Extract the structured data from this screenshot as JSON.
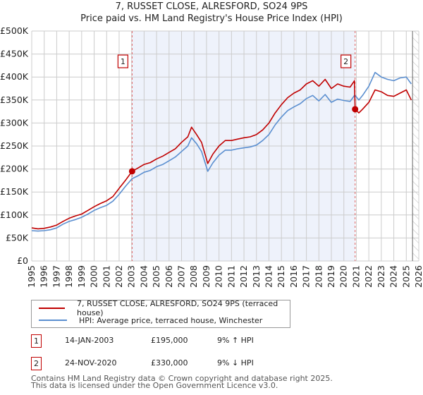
{
  "header": {
    "title": "7, RUSSET CLOSE, ALRESFORD, SO24 9PS",
    "subtitle": "Price paid vs. HM Land Registry's House Price Index (HPI)"
  },
  "colors": {
    "price_paid": "#c00000",
    "hpi": "#5b8fd0",
    "shaded_ownership": "#eef2fb",
    "grid": "#cccccc",
    "marker_border": "#c00000"
  },
  "chart_data": {
    "type": "line",
    "title": "Price paid vs. HM Land Registry's House Price Index (HPI)",
    "xlabel": "",
    "ylabel": "",
    "xlim": [
      1995,
      2026
    ],
    "ylim": [
      0,
      500000
    ],
    "grid": true,
    "x_ticks": [
      "1995",
      "1996",
      "1997",
      "1998",
      "1999",
      "2000",
      "2001",
      "2002",
      "2003",
      "2004",
      "2005",
      "2006",
      "2007",
      "2008",
      "2009",
      "2010",
      "2011",
      "2012",
      "2013",
      "2014",
      "2015",
      "2016",
      "2017",
      "2018",
      "2019",
      "2020",
      "2021",
      "2022",
      "2023",
      "2024",
      "2025",
      "2026"
    ],
    "y_ticks": [
      "£0",
      "£50K",
      "£100K",
      "£150K",
      "£200K",
      "£250K",
      "£300K",
      "£350K",
      "£400K",
      "£450K",
      "£500K"
    ],
    "y_tick_values": [
      0,
      50000,
      100000,
      150000,
      200000,
      250000,
      300000,
      350000,
      400000,
      450000,
      500000
    ],
    "legend_position": "below",
    "series": [
      {
        "name": "7, RUSSET CLOSE, ALRESFORD, SO24 9PS (terraced house)",
        "color": "#c00000",
        "x": [
          1995.0,
          1995.5,
          1996.0,
          1996.5,
          1997.0,
          1997.5,
          1998.0,
          1998.5,
          1999.0,
          1999.5,
          2000.0,
          2000.5,
          2001.0,
          2001.5,
          2002.0,
          2002.5,
          2003.04,
          2003.5,
          2004.0,
          2004.5,
          2005.0,
          2005.5,
          2006.0,
          2006.5,
          2007.0,
          2007.5,
          2007.8,
          2008.2,
          2008.6,
          2009.1,
          2009.5,
          2010.0,
          2010.5,
          2011.0,
          2011.5,
          2012.0,
          2012.5,
          2013.0,
          2013.5,
          2014.0,
          2014.5,
          2015.0,
          2015.5,
          2016.0,
          2016.5,
          2017.0,
          2017.5,
          2018.0,
          2018.5,
          2019.0,
          2019.5,
          2020.0,
          2020.5,
          2020.85,
          2020.9,
          2021.2,
          2021.5,
          2022.0,
          2022.5,
          2023.0,
          2023.5,
          2024.0,
          2024.5,
          2025.0,
          2025.4
        ],
        "values": [
          72000,
          70000,
          71000,
          74000,
          78000,
          86000,
          93000,
          98000,
          102000,
          110000,
          118000,
          125000,
          131000,
          140000,
          158000,
          175000,
          195000,
          202000,
          210000,
          214000,
          222000,
          228000,
          236000,
          244000,
          258000,
          270000,
          291000,
          275000,
          258000,
          212000,
          232000,
          250000,
          262000,
          262000,
          265000,
          268000,
          270000,
          275000,
          285000,
          300000,
          322000,
          340000,
          355000,
          365000,
          372000,
          385000,
          392000,
          380000,
          395000,
          375000,
          385000,
          380000,
          378000,
          392000,
          330000,
          322000,
          330000,
          345000,
          372000,
          368000,
          360000,
          358000,
          365000,
          372000,
          350000
        ]
      },
      {
        "name": "HPI: Average price, terraced house, Winchester",
        "color": "#5b8fd0",
        "x": [
          1995.0,
          1995.5,
          1996.0,
          1996.5,
          1997.0,
          1997.5,
          1998.0,
          1998.5,
          1999.0,
          1999.5,
          2000.0,
          2000.5,
          2001.0,
          2001.5,
          2002.0,
          2002.5,
          2003.04,
          2003.5,
          2004.0,
          2004.5,
          2005.0,
          2005.5,
          2006.0,
          2006.5,
          2007.0,
          2007.5,
          2007.8,
          2008.2,
          2008.6,
          2009.1,
          2009.5,
          2010.0,
          2010.5,
          2011.0,
          2011.5,
          2012.0,
          2012.5,
          2013.0,
          2013.5,
          2014.0,
          2014.5,
          2015.0,
          2015.5,
          2016.0,
          2016.5,
          2017.0,
          2017.5,
          2018.0,
          2018.5,
          2019.0,
          2019.5,
          2020.0,
          2020.5,
          2020.85,
          2020.9,
          2021.2,
          2021.5,
          2022.0,
          2022.5,
          2023.0,
          2023.5,
          2024.0,
          2024.5,
          2025.0,
          2025.4
        ],
        "values": [
          66000,
          65000,
          66000,
          68000,
          72000,
          80000,
          86000,
          90000,
          95000,
          102000,
          110000,
          116000,
          121000,
          130000,
          145000,
          162000,
          179000,
          185000,
          193000,
          197000,
          205000,
          210000,
          218000,
          226000,
          238000,
          250000,
          268000,
          255000,
          238000,
          195000,
          213000,
          230000,
          241000,
          241000,
          244000,
          246000,
          248000,
          252000,
          262000,
          275000,
          296000,
          313000,
          327000,
          335000,
          342000,
          353000,
          360000,
          348000,
          362000,
          345000,
          352000,
          349000,
          347000,
          360000,
          360000,
          350000,
          360000,
          380000,
          410000,
          400000,
          395000,
          392000,
          398000,
          400000,
          385000
        ]
      }
    ],
    "annotations": [
      {
        "label": "1",
        "x": 2003.04,
        "value": 195000,
        "date": "14-JAN-2003"
      },
      {
        "label": "2",
        "x": 2020.9,
        "value": 330000,
        "date": "24-NOV-2020"
      }
    ],
    "shaded_region": {
      "from": 2003.04,
      "to": 2020.9
    },
    "hatched_region": {
      "from": 2025.5,
      "to": 2026
    }
  },
  "legend": {
    "items": [
      {
        "label": "7, RUSSET CLOSE, ALRESFORD, SO24 9PS (terraced house)",
        "color": "#c00000"
      },
      {
        "label": "HPI: Average price, terraced house, Winchester",
        "color": "#5b8fd0"
      }
    ]
  },
  "sales": [
    {
      "num": "1",
      "date": "14-JAN-2003",
      "price": "£195,000",
      "hpi": "9% ↑ HPI"
    },
    {
      "num": "2",
      "date": "24-NOV-2020",
      "price": "£330,000",
      "hpi": "9% ↓ HPI"
    }
  ],
  "footer": {
    "line1": "Contains HM Land Registry data © Crown copyright and database right 2025.",
    "line2": "This data is licensed under the Open Government Licence v3.0."
  }
}
